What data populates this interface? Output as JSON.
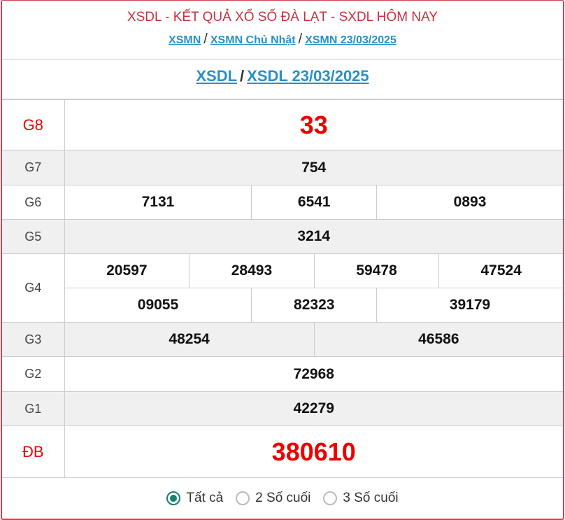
{
  "header": {
    "title": "XSDL - KẾT QUẢ XỔ SỐ ĐÀ LẠT - SXDL HÔM NAY",
    "breadcrumb": [
      "XSMN",
      "XSMN Chủ Nhật",
      "XSMN 23/03/2025"
    ],
    "subcrumb": [
      "XSDL",
      "XSDL 23/03/2025"
    ],
    "separator": "/"
  },
  "prizes": {
    "g8": {
      "label": "G8",
      "values": [
        "33"
      ]
    },
    "g7": {
      "label": "G7",
      "values": [
        "754"
      ]
    },
    "g6": {
      "label": "G6",
      "values": [
        "7131",
        "6541",
        "0893"
      ]
    },
    "g5": {
      "label": "G5",
      "values": [
        "3214"
      ]
    },
    "g4": {
      "label": "G4",
      "values": [
        "20597",
        "28493",
        "59478",
        "47524",
        "09055",
        "82323",
        "39179"
      ]
    },
    "g3": {
      "label": "G3",
      "values": [
        "48254",
        "46586"
      ]
    },
    "g2": {
      "label": "G2",
      "values": [
        "72968"
      ]
    },
    "g1": {
      "label": "G1",
      "values": [
        "42279"
      ]
    },
    "db": {
      "label": "ĐB",
      "values": [
        "380610"
      ]
    }
  },
  "filter": {
    "options": [
      "Tất cả",
      "2 Số cuối",
      "3 Số cuối"
    ],
    "selected": "Tất cả"
  },
  "colors": {
    "border": "#d0434f",
    "link": "#2a8fc8",
    "special": "#ee0000",
    "radio": "#17806e"
  }
}
